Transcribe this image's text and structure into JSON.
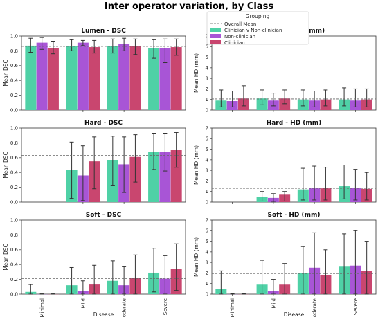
{
  "title": "Inter operator variation, by Class",
  "legend": {
    "title": "Grouping",
    "overall_label": "Overall Mean",
    "entries": [
      {
        "name": "Clinician v Non-clinician",
        "color": "#4fd1a6"
      },
      {
        "name": "Non-clinician",
        "color": "#a855d6"
      },
      {
        "name": "Clinician",
        "color": "#c9466f"
      }
    ]
  },
  "chart_data": [
    {
      "type": "bar",
      "title": "Lumen - DSC",
      "ylabel": "Mean DSC",
      "xlabel": "",
      "categories": [
        "Minimal",
        "Mild",
        "Moderate",
        "Severe"
      ],
      "ylim": [
        0,
        1
      ],
      "yticks": [
        "0.0",
        "0.2",
        "0.4",
        "0.6",
        "0.8",
        "1.0"
      ],
      "show_xticklabels": false,
      "overall_mean": 0.86,
      "series": [
        {
          "name": "Clinician v Non-clinician",
          "values": [
            0.87,
            0.86,
            0.86,
            0.84
          ],
          "err_low": [
            0.78,
            0.8,
            0.77,
            0.7
          ],
          "err_high": [
            0.97,
            0.95,
            0.96,
            0.95
          ]
        },
        {
          "name": "Non-clinician",
          "values": [
            0.91,
            0.91,
            0.89,
            0.84
          ],
          "err_low": [
            0.82,
            0.87,
            0.8,
            0.64
          ],
          "err_high": [
            0.98,
            0.94,
            0.97,
            0.96
          ]
        },
        {
          "name": "Clinician",
          "values": [
            0.84,
            0.85,
            0.86,
            0.85
          ],
          "err_low": [
            0.76,
            0.77,
            0.75,
            0.74
          ],
          "err_high": [
            0.93,
            0.94,
            0.96,
            0.96
          ]
        }
      ]
    },
    {
      "type": "bar",
      "title": "Lumen - HD (mm)",
      "ylabel": "Mean HD (mm)",
      "xlabel": "",
      "categories": [
        "Minimal",
        "Mild",
        "Moderate",
        "Severe"
      ],
      "ylim": [
        0,
        7
      ],
      "yticks": [
        "0",
        "1",
        "2",
        "3",
        "4",
        "5",
        "6",
        "7"
      ],
      "show_xticklabels": false,
      "overall_mean": 1.05,
      "series": [
        {
          "name": "Clinician v Non-clinician",
          "values": [
            0.9,
            1.1,
            1.0,
            1.0
          ],
          "err_low": [
            0.3,
            0.5,
            0.4,
            0.4
          ],
          "err_high": [
            1.9,
            1.9,
            1.9,
            2.1
          ]
        },
        {
          "name": "Non-clinician",
          "values": [
            0.85,
            0.9,
            0.9,
            0.9
          ],
          "err_low": [
            0.3,
            0.4,
            0.3,
            0.3
          ],
          "err_high": [
            1.8,
            1.6,
            1.8,
            2.0
          ]
        },
        {
          "name": "Clinician",
          "values": [
            1.1,
            1.1,
            1.0,
            1.0
          ],
          "err_low": [
            0.4,
            0.6,
            0.4,
            0.3
          ],
          "err_high": [
            2.3,
            1.9,
            1.9,
            2.0
          ]
        }
      ]
    },
    {
      "type": "bar",
      "title": "Hard - DSC",
      "ylabel": "Mean DSC",
      "xlabel": "",
      "categories": [
        "Minimal",
        "Mild",
        "Moderate",
        "Severe"
      ],
      "ylim": [
        0,
        1
      ],
      "yticks": [
        "0.0",
        "0.2",
        "0.4",
        "0.6",
        "0.8",
        "1.0"
      ],
      "show_xticklabels": false,
      "overall_mean": 0.63,
      "series": [
        {
          "name": "Clinician v Non-clinician",
          "values": [
            null,
            0.43,
            0.57,
            0.68
          ],
          "err_low": [
            null,
            0.05,
            0.22,
            0.44
          ],
          "err_high": [
            null,
            0.81,
            0.89,
            0.93
          ]
        },
        {
          "name": "Non-clinician",
          "values": [
            null,
            0.36,
            0.51,
            0.68
          ],
          "err_low": [
            null,
            0.02,
            0.13,
            0.42
          ],
          "err_high": [
            null,
            0.76,
            0.88,
            0.93
          ]
        },
        {
          "name": "Clinician",
          "values": [
            null,
            0.55,
            0.61,
            0.71
          ],
          "err_low": [
            null,
            0.18,
            0.27,
            0.47
          ],
          "err_high": [
            null,
            0.88,
            0.91,
            0.94
          ]
        }
      ]
    },
    {
      "type": "bar",
      "title": "Hard - HD (mm)",
      "ylabel": "Mean HD (mm)",
      "xlabel": "",
      "categories": [
        "Minimal",
        "Mild",
        "Moderate",
        "Severe"
      ],
      "ylim": [
        0,
        7
      ],
      "yticks": [
        "0",
        "1",
        "2",
        "3",
        "4",
        "5",
        "6",
        "7"
      ],
      "show_xticklabels": false,
      "overall_mean": 1.3,
      "series": [
        {
          "name": "Clinician v Non-clinician",
          "values": [
            null,
            0.5,
            1.2,
            1.5
          ],
          "err_low": [
            null,
            0.1,
            0.2,
            0.3
          ],
          "err_high": [
            null,
            1.0,
            3.2,
            3.5
          ]
        },
        {
          "name": "Non-clinician",
          "values": [
            null,
            0.4,
            1.3,
            1.35
          ],
          "err_low": [
            null,
            0.0,
            0.2,
            0.2
          ],
          "err_high": [
            null,
            0.8,
            3.4,
            3.1
          ]
        },
        {
          "name": "Clinician",
          "values": [
            null,
            0.7,
            1.3,
            1.25
          ],
          "err_low": [
            null,
            0.1,
            0.2,
            0.2
          ],
          "err_high": [
            null,
            1.0,
            3.3,
            2.8
          ]
        }
      ]
    },
    {
      "type": "bar",
      "title": "Soft - DSC",
      "ylabel": "Mean DSC",
      "xlabel": "Disease",
      "categories": [
        "Minimal",
        "Mild",
        "Moderate",
        "Severe"
      ],
      "ylim": [
        0,
        1
      ],
      "yticks": [
        "0.0",
        "0.2",
        "0.4",
        "0.6",
        "0.8",
        "1.0"
      ],
      "show_xticklabels": true,
      "overall_mean": 0.21,
      "series": [
        {
          "name": "Clinician v Non-clinician",
          "values": [
            0.03,
            0.12,
            0.18,
            0.29
          ],
          "err_low": [
            0.0,
            0.0,
            0.0,
            0.03
          ],
          "err_high": [
            0.13,
            0.36,
            0.45,
            0.62
          ]
        },
        {
          "name": "Non-clinician",
          "values": [
            0.0,
            0.04,
            0.12,
            0.21
          ],
          "err_low": [
            0.0,
            0.0,
            0.0,
            0.0
          ],
          "err_high": [
            0.01,
            0.18,
            0.37,
            0.52
          ]
        },
        {
          "name": "Clinician",
          "values": [
            0.0,
            0.13,
            0.22,
            0.34
          ],
          "err_low": [
            0.0,
            0.0,
            0.0,
            0.05
          ],
          "err_high": [
            0.01,
            0.39,
            0.53,
            0.68
          ]
        }
      ]
    },
    {
      "type": "bar",
      "title": "Soft - HD (mm)",
      "ylabel": "Mean HD (mm)",
      "xlabel": "Disease",
      "categories": [
        "Minimal",
        "Mild",
        "Moderate",
        "Severe"
      ],
      "ylim": [
        0,
        7
      ],
      "yticks": [
        "0",
        "1",
        "2",
        "3",
        "4",
        "5",
        "6",
        "7"
      ],
      "show_xticklabels": true,
      "overall_mean": 1.95,
      "series": [
        {
          "name": "Clinician v Non-clinician",
          "values": [
            0.5,
            0.9,
            2.0,
            2.6
          ],
          "err_low": [
            0.0,
            0.0,
            0.0,
            0.0
          ],
          "err_high": [
            2.2,
            3.2,
            4.5,
            5.7
          ]
        },
        {
          "name": "Non-clinician",
          "values": [
            0.0,
            0.3,
            2.5,
            2.7
          ],
          "err_low": [
            0.0,
            0.0,
            0.0,
            0.0
          ],
          "err_high": [
            0.05,
            1.4,
            5.8,
            6.0
          ]
        },
        {
          "name": "Clinician",
          "values": [
            0.0,
            0.9,
            1.8,
            2.2
          ],
          "err_low": [
            0.0,
            0.0,
            0.0,
            0.0
          ],
          "err_high": [
            0.05,
            2.9,
            4.2,
            5.0
          ]
        }
      ]
    }
  ]
}
